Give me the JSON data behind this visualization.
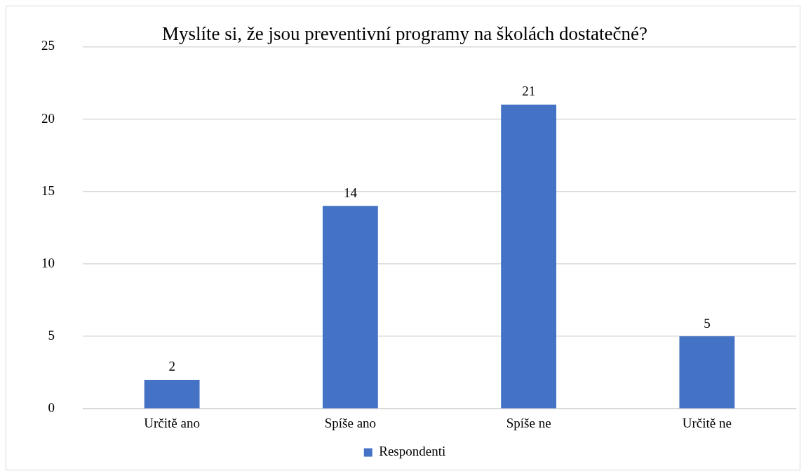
{
  "chart_data": {
    "type": "bar",
    "title": "Myslíte si, že jsou preventivní programy na školách dostatečné?",
    "categories": [
      "Určitě ano",
      "Spíše ano",
      "Spíše ne",
      "Určitě ne"
    ],
    "series": [
      {
        "name": "Respondenti",
        "color": "#4472c4",
        "values": [
          2,
          14,
          21,
          5
        ]
      }
    ],
    "ylim": [
      0,
      25
    ],
    "yticks": [
      0,
      5,
      10,
      15,
      20,
      25
    ],
    "grid": "y",
    "legend": "bottom",
    "data_labels": true
  }
}
